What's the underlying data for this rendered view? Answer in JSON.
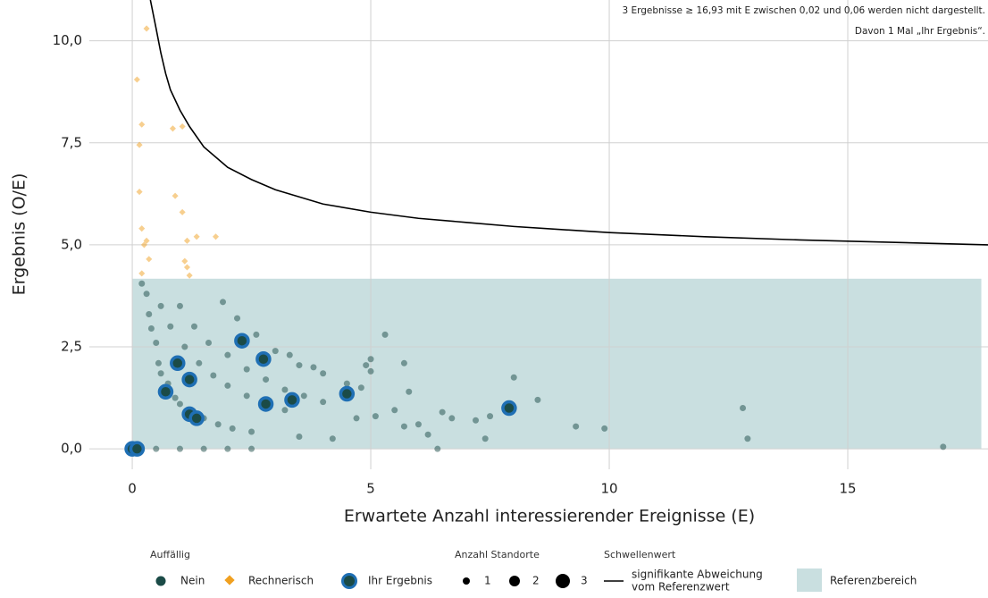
{
  "chart_data": {
    "type": "scatter",
    "x_label": "Erwartete Anzahl interessierender Ereignisse (E)",
    "y_label": "Ergebnis (O/E)",
    "annotations": [
      "3 Ergebnisse ≥ 16,93 mit E zwischen 0,02 und 0,06 werden nicht dargestellt.",
      "Davon 1 Mal „Ihr Ergebnis“."
    ],
    "xlim": [
      -0.9,
      17.94
    ],
    "ylim": [
      -0.5,
      11.0
    ],
    "xticks": [
      0,
      5,
      10,
      15
    ],
    "yticks": [
      {
        "value": 0,
        "label": "0,0"
      },
      {
        "value": 2.5,
        "label": "2,5"
      },
      {
        "value": 5,
        "label": "5,0"
      },
      {
        "value": 7.5,
        "label": "7,5"
      },
      {
        "value": 10,
        "label": "10,0"
      }
    ],
    "grid": true,
    "reference": {
      "label": "Referenzbereich",
      "color": "#c9dfe0",
      "xlim": [
        0,
        17.8
      ],
      "ylim": [
        0,
        4.17
      ]
    },
    "threshold": {
      "color": "#000000",
      "x": [
        0.38,
        0.5,
        0.6,
        0.7,
        0.8,
        1.0,
        1.2,
        1.5,
        2.0,
        2.5,
        3.0,
        4.0,
        5.0,
        6.0,
        7.0,
        8.0,
        10.0,
        12.0,
        14.0,
        16.0,
        17.94
      ],
      "values": [
        11.0,
        10.3,
        9.7,
        9.2,
        8.8,
        8.3,
        7.9,
        7.4,
        6.9,
        6.6,
        6.35,
        6.0,
        5.8,
        5.65,
        5.55,
        5.45,
        5.3,
        5.2,
        5.12,
        5.06,
        5.0
      ]
    },
    "legend": {
      "group_title": "Auffällig",
      "size_title": "Anzahl Standorte",
      "sizes": [
        1,
        2,
        3
      ],
      "threshold_title": "Schwellenwert",
      "threshold_label": [
        "signifikante Abweichung",
        "vom Referenzwert"
      ]
    },
    "series": [
      {
        "name": "Nein",
        "color": "#1b4b47",
        "marker": "circle",
        "x": [
          0.2,
          0.3,
          0.35,
          0.4,
          0.5,
          0.55,
          0.6,
          0.75,
          0.9,
          1.0,
          1.2,
          1.5,
          1.8,
          2.1,
          2.5,
          0.6,
          0.8,
          1.1,
          1.4,
          1.7,
          2.0,
          2.4,
          2.8,
          3.2,
          1.0,
          1.3,
          1.6,
          2.0,
          2.4,
          2.8,
          3.2,
          3.6,
          4.0,
          1.9,
          2.2,
          2.6,
          3.0,
          3.5,
          4.0,
          4.5,
          3.3,
          3.8,
          4.8,
          5.1,
          5.3,
          5.5,
          5.8,
          5.7,
          6.0,
          6.2,
          6.5,
          6.7,
          7.2,
          7.5,
          7.4,
          8.0,
          8.5,
          9.3,
          9.9,
          12.8,
          12.9,
          17.0,
          6.4,
          3.5,
          4.2,
          4.7,
          2.0,
          1.0,
          1.5,
          2.5,
          0.5,
          5.0,
          5.0,
          4.9,
          5.7
        ],
        "values": [
          4.05,
          3.8,
          3.3,
          2.95,
          2.6,
          2.1,
          1.85,
          1.6,
          1.25,
          1.1,
          0.95,
          0.75,
          0.6,
          0.5,
          0.42,
          3.5,
          3.0,
          2.5,
          2.1,
          1.8,
          1.55,
          1.3,
          1.1,
          0.95,
          3.5,
          3.0,
          2.6,
          2.3,
          1.95,
          1.7,
          1.45,
          1.3,
          1.15,
          3.6,
          3.2,
          2.8,
          2.4,
          2.05,
          1.85,
          1.6,
          2.3,
          2.0,
          1.5,
          0.8,
          2.8,
          0.95,
          1.4,
          0.55,
          0.6,
          0.35,
          0.9,
          0.75,
          0.7,
          0.8,
          0.25,
          1.75,
          1.2,
          0.55,
          0.5,
          1.0,
          0.25,
          0.05,
          0.0,
          0.3,
          0.25,
          0.75,
          0.0,
          0.0,
          0.0,
          0.0,
          0.0,
          2.2,
          1.9,
          2.05,
          2.1
        ]
      },
      {
        "name": "Rechnerisch",
        "color": "#f0a020",
        "marker": "diamond",
        "x": [
          0.1,
          0.15,
          0.2,
          0.3,
          0.15,
          0.2,
          0.3,
          0.25,
          0.35,
          0.2,
          0.85,
          1.05,
          0.9,
          1.05,
          1.15,
          1.35,
          1.75,
          1.1,
          1.15,
          1.2
        ],
        "values": [
          9.05,
          7.45,
          7.95,
          10.3,
          6.3,
          5.4,
          5.1,
          5.0,
          4.65,
          4.3,
          7.85,
          7.9,
          6.2,
          5.8,
          5.1,
          5.2,
          5.2,
          4.6,
          4.45,
          4.25
        ]
      },
      {
        "name": "Ihr Ergebnis",
        "color": "#1b4b47",
        "outline": "#1f6fb4",
        "marker": "circle",
        "x": [
          0,
          0.1,
          0.7,
          0.95,
          1.2,
          1.2,
          1.35,
          2.3,
          2.75,
          2.8,
          3.35,
          4.5,
          7.9
        ],
        "values": [
          0,
          0,
          1.4,
          2.1,
          1.7,
          0.85,
          0.75,
          2.65,
          2.2,
          1.1,
          1.2,
          1.35,
          1.0
        ]
      }
    ]
  }
}
